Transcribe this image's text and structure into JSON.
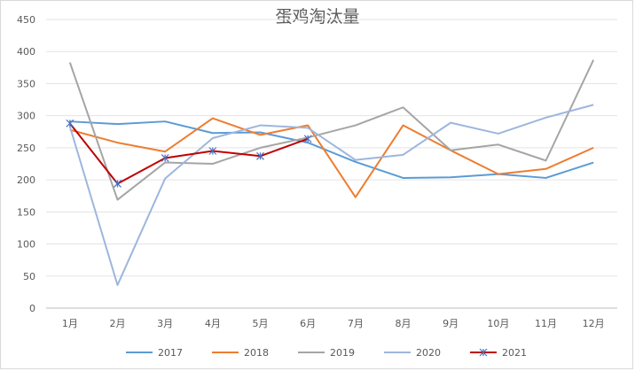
{
  "chart_data": {
    "type": "line",
    "title": "蛋鸡淘汰量",
    "xlabel": "",
    "ylabel": "",
    "ylim": [
      0,
      450
    ],
    "yticks": [
      0,
      50,
      100,
      150,
      200,
      250,
      300,
      350,
      400,
      450
    ],
    "grid": true,
    "legend_position": "bottom",
    "categories": [
      "1月",
      "2月",
      "3月",
      "4月",
      "5月",
      "6月",
      "7月",
      "8月",
      "9月",
      "10月",
      "11月",
      "12月"
    ],
    "series": [
      {
        "name": "2017",
        "color": "#5b9bd5",
        "marker": "none",
        "values": [
          291,
          287,
          291,
          273,
          274,
          258,
          228,
          203,
          204,
          209,
          203,
          227
        ]
      },
      {
        "name": "2018",
        "color": "#ed7d31",
        "marker": "none",
        "values": [
          278,
          258,
          244,
          296,
          270,
          285,
          173,
          285,
          246,
          209,
          217,
          250
        ]
      },
      {
        "name": "2019",
        "color": "#a5a5a5",
        "marker": "none",
        "values": [
          383,
          169,
          227,
          225,
          250,
          266,
          285,
          313,
          246,
          255,
          230,
          387
        ]
      },
      {
        "name": "2020",
        "color": "#9eb6dd",
        "marker": "none",
        "values": [
          283,
          36,
          202,
          265,
          285,
          281,
          231,
          239,
          289,
          272,
          297,
          317
        ]
      },
      {
        "name": "2021",
        "color": "#c00000",
        "marker": "star",
        "values": [
          288,
          194,
          234,
          245,
          237,
          264,
          null,
          null,
          null,
          null,
          null,
          null
        ]
      }
    ]
  }
}
